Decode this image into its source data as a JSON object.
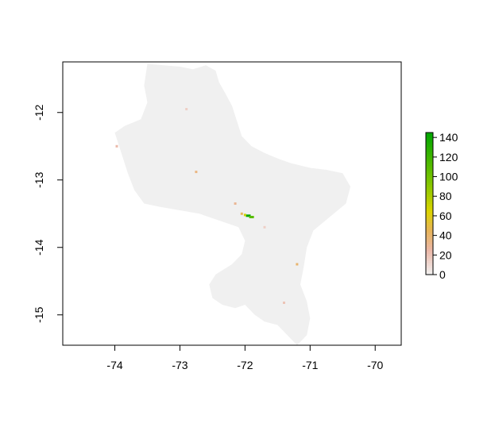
{
  "chart_data": {
    "type": "heatmap",
    "title": "",
    "xlabel": "",
    "ylabel": "",
    "xlim": [
      -74.8,
      -69.6
    ],
    "ylim": [
      -15.45,
      -11.25
    ],
    "x_ticks": [
      {
        "value": -74,
        "label": "-74"
      },
      {
        "value": -73,
        "label": "-73"
      },
      {
        "value": -72,
        "label": "-72"
      },
      {
        "value": -71,
        "label": "-71"
      },
      {
        "value": -70,
        "label": "-70"
      }
    ],
    "y_ticks": [
      {
        "value": -12,
        "label": "-12"
      },
      {
        "value": -13,
        "label": "-13"
      },
      {
        "value": -14,
        "label": "-14"
      },
      {
        "value": -15,
        "label": "-15"
      }
    ],
    "region_fill_color": "#f0f0f0",
    "region_outline_lonlat": [
      [
        -73.5,
        -11.28
      ],
      [
        -73.0,
        -11.32
      ],
      [
        -72.8,
        -11.36
      ],
      [
        -72.6,
        -11.3
      ],
      [
        -72.45,
        -11.38
      ],
      [
        -72.4,
        -11.55
      ],
      [
        -72.3,
        -11.72
      ],
      [
        -72.2,
        -11.9
      ],
      [
        -72.15,
        -12.05
      ],
      [
        -72.1,
        -12.2
      ],
      [
        -72.05,
        -12.35
      ],
      [
        -71.9,
        -12.5
      ],
      [
        -71.7,
        -12.6
      ],
      [
        -71.5,
        -12.68
      ],
      [
        -71.3,
        -12.75
      ],
      [
        -71.0,
        -12.82
      ],
      [
        -70.75,
        -12.85
      ],
      [
        -70.5,
        -12.9
      ],
      [
        -70.38,
        -13.1
      ],
      [
        -70.45,
        -13.35
      ],
      [
        -70.7,
        -13.55
      ],
      [
        -70.95,
        -13.75
      ],
      [
        -71.05,
        -14.0
      ],
      [
        -71.1,
        -14.3
      ],
      [
        -71.15,
        -14.55
      ],
      [
        -71.05,
        -14.8
      ],
      [
        -71.0,
        -15.05
      ],
      [
        -71.05,
        -15.3
      ],
      [
        -71.2,
        -15.45
      ],
      [
        -71.35,
        -15.3
      ],
      [
        -71.5,
        -15.15
      ],
      [
        -71.7,
        -15.1
      ],
      [
        -71.85,
        -15.0
      ],
      [
        -72.0,
        -14.85
      ],
      [
        -72.15,
        -14.9
      ],
      [
        -72.35,
        -14.85
      ],
      [
        -72.5,
        -14.75
      ],
      [
        -72.55,
        -14.55
      ],
      [
        -72.45,
        -14.4
      ],
      [
        -72.2,
        -14.25
      ],
      [
        -72.05,
        -14.1
      ],
      [
        -72.0,
        -13.9
      ],
      [
        -72.1,
        -13.7
      ],
      [
        -72.4,
        -13.6
      ],
      [
        -72.7,
        -13.5
      ],
      [
        -73.0,
        -13.45
      ],
      [
        -73.3,
        -13.4
      ],
      [
        -73.55,
        -13.35
      ],
      [
        -73.7,
        -13.15
      ],
      [
        -73.8,
        -12.9
      ],
      [
        -73.9,
        -12.6
      ],
      [
        -74.0,
        -12.3
      ],
      [
        -73.85,
        -12.2
      ],
      [
        -73.6,
        -12.1
      ],
      [
        -73.5,
        -11.85
      ],
      [
        -73.55,
        -11.6
      ],
      [
        -73.5,
        -11.28
      ]
    ],
    "hotspots": [
      {
        "lon": -71.95,
        "lat": -13.53,
        "value": 145
      },
      {
        "lon": -71.9,
        "lat": -13.55,
        "value": 110
      },
      {
        "lon": -72.0,
        "lat": -13.52,
        "value": 70
      },
      {
        "lon": -72.05,
        "lat": -13.5,
        "value": 45
      },
      {
        "lon": -72.15,
        "lat": -13.35,
        "value": 30
      },
      {
        "lon": -71.2,
        "lat": -14.25,
        "value": 40
      },
      {
        "lon": -72.75,
        "lat": -12.88,
        "value": 35
      },
      {
        "lon": -73.97,
        "lat": -12.5,
        "value": 25
      },
      {
        "lon": -71.4,
        "lat": -14.82,
        "value": 20
      },
      {
        "lon": -71.7,
        "lat": -13.7,
        "value": 15
      },
      {
        "lon": -72.9,
        "lat": -11.95,
        "value": 15
      }
    ],
    "colorbar": {
      "range": [
        0,
        145
      ],
      "ticks": [
        {
          "value": 0,
          "label": "0"
        },
        {
          "value": 20,
          "label": "20"
        },
        {
          "value": 40,
          "label": "40"
        },
        {
          "value": 60,
          "label": "60"
        },
        {
          "value": 80,
          "label": "80"
        },
        {
          "value": 100,
          "label": "100"
        },
        {
          "value": 120,
          "label": "120"
        },
        {
          "value": 140,
          "label": "140"
        }
      ],
      "stops": [
        {
          "value": 0,
          "color": "#f2f2f2"
        },
        {
          "value": 25,
          "color": "#ebb8a8"
        },
        {
          "value": 45,
          "color": "#e8b45a"
        },
        {
          "value": 65,
          "color": "#dcd400"
        },
        {
          "value": 95,
          "color": "#7ec500"
        },
        {
          "value": 145,
          "color": "#00a600"
        }
      ]
    },
    "legend_position": "right",
    "grid": false
  }
}
